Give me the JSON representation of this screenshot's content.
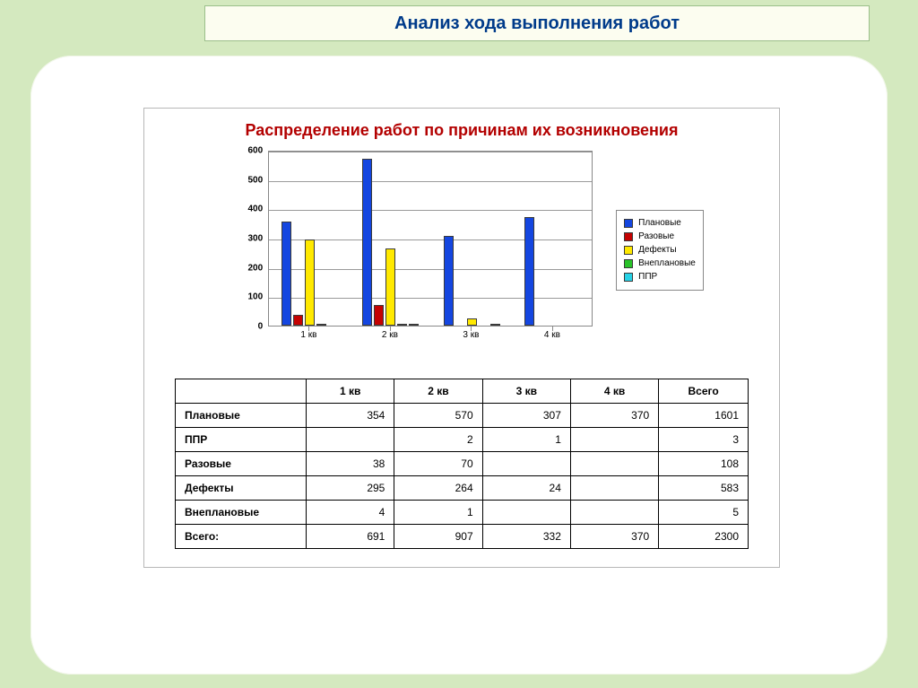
{
  "page_title": "Анализ хода выполнения работ",
  "chart": {
    "title": "Распределение работ по причинам их возникновения",
    "type": "bar",
    "y_max": 600,
    "y_ticks": [
      0,
      100,
      200,
      300,
      400,
      500,
      600
    ],
    "categories": [
      "1 кв",
      "2 кв",
      "3 кв",
      "4 кв"
    ],
    "series": [
      {
        "name": "Плановые",
        "color": "#1446e0",
        "values": [
          354,
          570,
          307,
          370
        ]
      },
      {
        "name": "Разовые",
        "color": "#c40202",
        "values": [
          38,
          70,
          0,
          0
        ]
      },
      {
        "name": "Дефекты",
        "color": "#ffe900",
        "values": [
          295,
          264,
          24,
          0
        ]
      },
      {
        "name": "Внеплановые",
        "color": "#29c229",
        "values": [
          4,
          1,
          0,
          0
        ]
      },
      {
        "name": "ППР",
        "color": "#27d2e6",
        "values": [
          0,
          2,
          1,
          0
        ]
      }
    ],
    "axis_font_size": 10,
    "grid_color": "#9a9a9a",
    "bar_border": "#3a3a3a",
    "background": "#ffffff"
  },
  "table": {
    "columns": [
      "1 кв",
      "2 кв",
      "3 кв",
      "4 кв",
      "Всего"
    ],
    "rows": [
      {
        "label": "Плановые",
        "cells": [
          "354",
          "570",
          "307",
          "370",
          "1601"
        ]
      },
      {
        "label": "ППР",
        "cells": [
          "",
          "2",
          "1",
          "",
          "3"
        ]
      },
      {
        "label": "Разовые",
        "cells": [
          "38",
          "70",
          "",
          "",
          "108"
        ]
      },
      {
        "label": "Дефекты",
        "cells": [
          "295",
          "264",
          "24",
          "",
          "583"
        ]
      },
      {
        "label": "Внеплановые",
        "cells": [
          "4",
          "1",
          "",
          "",
          "5"
        ]
      },
      {
        "label": "Всего:",
        "cells": [
          "691",
          "907",
          "332",
          "370",
          "2300"
        ]
      }
    ]
  }
}
